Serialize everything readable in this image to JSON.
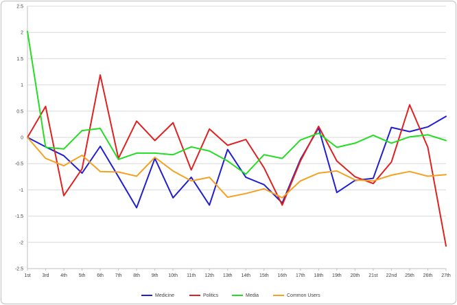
{
  "chart_data": {
    "type": "line",
    "categories": [
      "1st",
      "3rd",
      "4th",
      "5th",
      "6th",
      "7th",
      "8th",
      "9th",
      "10th",
      "11th",
      "12th",
      "13th",
      "14th",
      "15th",
      "16th",
      "17th",
      "18th",
      "19th",
      "20th",
      "21st",
      "22nd",
      "25th",
      "26th",
      "27th"
    ],
    "ylim": [
      -2.5,
      2.5
    ],
    "yticks": [
      "2.5",
      "2",
      "1.5",
      "1",
      "0.5",
      "0",
      "-0.5",
      "-1",
      "-1.5",
      "-2",
      "-2.5"
    ],
    "ytick_values": [
      2.5,
      2,
      1.5,
      1,
      0.5,
      0,
      -0.5,
      -1,
      -1.5,
      -2,
      -2.5
    ],
    "grid": true,
    "legend_position": "bottom",
    "series": [
      {
        "name": "Medicine",
        "color": "#1f1fd1",
        "values": [
          0,
          -0.18,
          -0.35,
          -0.68,
          -0.17,
          -0.75,
          -1.34,
          -0.4,
          -1.15,
          -0.76,
          -1.29,
          -0.23,
          -0.76,
          -0.9,
          -1.25,
          -0.42,
          0.18,
          -1.05,
          -0.82,
          -0.78,
          0.19,
          0.11,
          0.2,
          0.4
        ]
      },
      {
        "name": "Politics",
        "color": "#e02020",
        "values": [
          0,
          0.59,
          -1.11,
          -0.6,
          1.19,
          -0.4,
          0.31,
          -0.06,
          0.28,
          -0.62,
          0.16,
          -0.15,
          -0.04,
          -0.58,
          -1.29,
          -0.45,
          0.21,
          -0.45,
          -0.75,
          -0.88,
          -0.47,
          0.62,
          -0.19,
          -2.07
        ]
      },
      {
        "name": "Media",
        "color": "#22dd22",
        "values": [
          2.02,
          -0.19,
          -0.22,
          0.13,
          0.17,
          -0.42,
          -0.3,
          -0.3,
          -0.33,
          -0.18,
          -0.26,
          -0.45,
          -0.7,
          -0.33,
          -0.4,
          -0.05,
          0.08,
          -0.19,
          -0.11,
          0.04,
          -0.11,
          0.01,
          0.05,
          -0.06
        ]
      },
      {
        "name": "Common Users",
        "color": "#f5a020",
        "values": [
          0,
          -0.4,
          -0.54,
          -0.34,
          -0.65,
          -0.66,
          -0.74,
          -0.38,
          -0.64,
          -0.83,
          -0.76,
          -1.14,
          -1.07,
          -0.98,
          -1.15,
          -0.83,
          -0.68,
          -0.64,
          -0.81,
          -0.83,
          -0.72,
          -0.65,
          -0.74,
          -0.71
        ]
      }
    ]
  }
}
